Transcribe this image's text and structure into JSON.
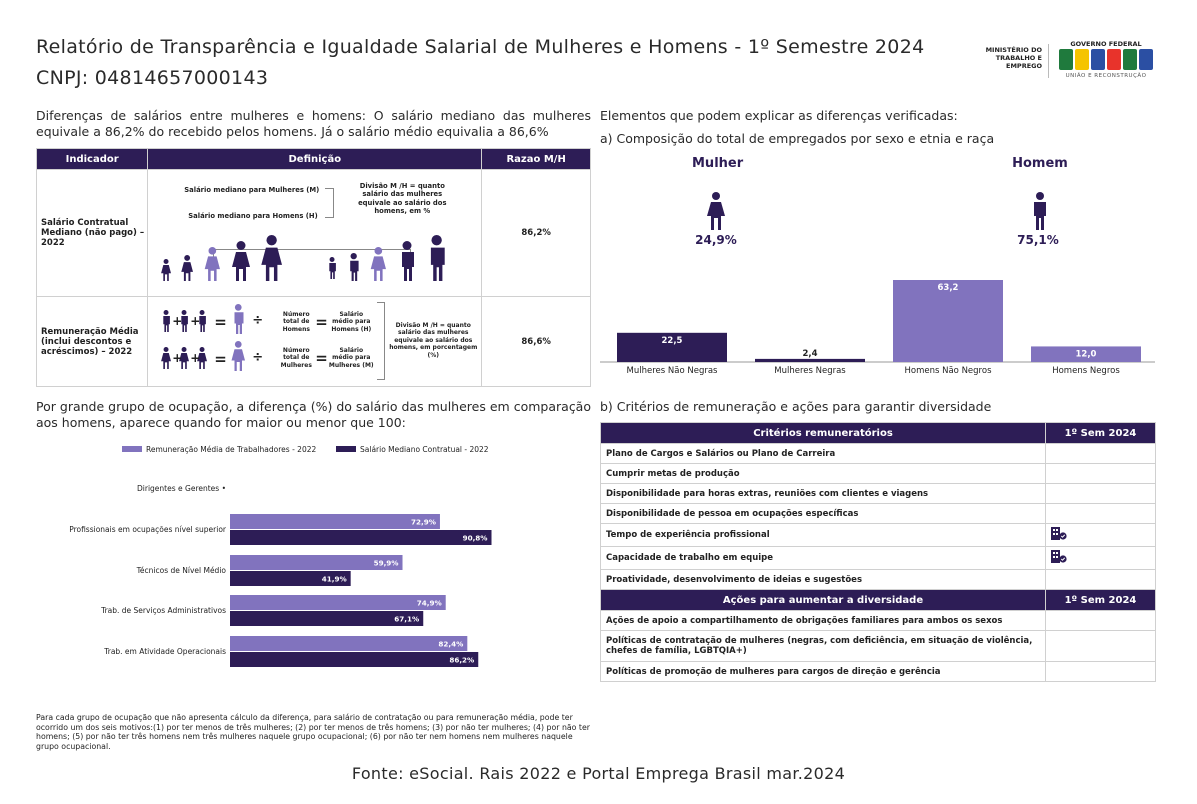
{
  "header": {
    "title": "Relatório de Transparência e Igualdade Salarial de Mulheres e Homens - 1º Semestre 2024",
    "cnpj": "CNPJ: 04814657000143"
  },
  "logo": {
    "ministry": "MINISTÉRIO DO TRABALHO E EMPREGO",
    "gov": "GOVERNO FEDERAL",
    "brand": "BRASIL",
    "slogan": "UNIÃO E RECONSTRUÇÃO",
    "colors": [
      "#1f7a3d",
      "#f5c400",
      "#2b4fa3",
      "#e8332b",
      "#1f7a3d",
      "#2b4fa3"
    ]
  },
  "left_intro": {
    "line1": "Diferenças de salários entre mulheres e homens: O salário mediano das mulheres",
    "line2": "equivale a 86,2% do recebido pelos homens. Já o salário médio equivalia a 86,6%"
  },
  "indicator_table": {
    "headers": [
      "Indicador",
      "Definição",
      "Razao M/H"
    ],
    "row1": {
      "indicator": "Salário Contratual Mediano (não pago) – 2022",
      "def_women": "Salário mediano para Mulheres (M)",
      "def_men": "Salário mediano para Homens (H)",
      "division": "Divisão M /H = quanto salário das mulheres equivale ao salário dos homens, em %",
      "ratio": "86,2%"
    },
    "row2": {
      "indicator": "Remuneração Média (inclui descontos e acréscimos) – 2022",
      "num_total_men": "Número total de Homens",
      "num_total_women": "Número total de Mulheres",
      "avg_men": "Salário médio para Homens (H)",
      "avg_women": "Salário médio para Mulheres (M)",
      "division": "Divisão M /H = quanto salário das mulheres equivale ao salário dos homens, em porcentagem (%)",
      "ratio": "86,6%"
    }
  },
  "right_intro": {
    "heading": "Elementos que podem explicar as diferenças verificadas:",
    "sub_a": "a) Composição do total de empregados por sexo e etnia e raça",
    "sub_b": "b) Critérios de remuneração e ações para garantir diversidade"
  },
  "composition": {
    "women_label": "Mulher",
    "women_pct": "24,9%",
    "men_label": "Homem",
    "men_pct": "75,1%"
  },
  "occupation_intro": {
    "line1": "Por grande grupo de ocupação, a diferença (%) do salário das mulheres em comparação",
    "line2": "aos homens, aparece quando for maior ou menor que 100:"
  },
  "chart_data": [
    {
      "type": "bar",
      "categories": [
        "Mulheres Não Negras",
        "Mulheres Negras",
        "Homens Não Negros",
        "Homens Negros"
      ],
      "values": [
        22.5,
        2.4,
        63.2,
        12.0
      ],
      "labels": [
        "22,5",
        "2,4",
        "63,2",
        "12,0"
      ],
      "colors": [
        "#2d1d56",
        "#2d1d56",
        "#8173be",
        "#8173be"
      ],
      "ylim": [
        0,
        63.2
      ]
    },
    {
      "type": "bar",
      "orientation": "horizontal",
      "categories": [
        "Dirigentes e Gerentes",
        "Profissionais em ocupações nível superior",
        "Técnicos de Nível Médio",
        "Trab. de Serviços Administrativos",
        "Trab. em Atividade Operacionais"
      ],
      "series": [
        {
          "name": "Remuneração Média de Trabalhadores - 2022",
          "color": "#8173be",
          "values": [
            null,
            72.9,
            59.9,
            74.9,
            82.4
          ],
          "labels": [
            "",
            "72,9%",
            "59,9%",
            "74,9%",
            "82,4%"
          ]
        },
        {
          "name": "Salário Mediano Contratual - 2022",
          "color": "#2d1d56",
          "values": [
            null,
            90.8,
            41.9,
            67.1,
            86.2
          ],
          "labels": [
            "",
            "90,8%",
            "41,9%",
            "67,1%",
            "86,2%"
          ]
        }
      ],
      "xlim": [
        0,
        100
      ],
      "legend": "top"
    }
  ],
  "criteria_table": {
    "header1": "Critérios remuneratórios",
    "header2": "1º Sem 2024",
    "rows": [
      {
        "label": "Plano de Cargos e Salários ou Plano de Carreira",
        "mark": false
      },
      {
        "label": "Cumprir metas de produção",
        "mark": false
      },
      {
        "label": "Disponibilidade para horas extras, reuniões com clientes e viagens",
        "mark": false
      },
      {
        "label": "Disponibilidade de pessoa em ocupações específicas",
        "mark": false
      },
      {
        "label": "Tempo de experiência profissional",
        "mark": true
      },
      {
        "label": "Capacidade de trabalho em equipe",
        "mark": true
      },
      {
        "label": "Proatividade, desenvolvimento de ideias e sugestões",
        "mark": false
      }
    ],
    "actions_header1": "Ações para aumentar a diversidade",
    "actions_header2": "1º Sem 2024",
    "actions": [
      {
        "label": "Ações de apoio a compartilhamento de obrigações familiares para ambos os sexos"
      },
      {
        "label": "Políticas de contratação de mulheres (negras, com deficiência, em situação de violência, chefes de família, LGBTQIA+)"
      },
      {
        "label": "Políticas de promoção de mulheres para cargos de direção e gerência"
      }
    ],
    "mark_icon": "building-check-icon"
  },
  "footnote": "Para cada grupo de ocupação que não apresenta cálculo da diferença, para salário de contratação ou para remuneração média, pode ter ocorrido um dos seis motivos:(1) por ter menos de três mulheres; (2) por ter menos de três homens; (3) por não ter mulheres; (4) por não ter homens; (5) por não ter três homens nem três mulheres naquele grupo ocupacional; (6) por não ter nem homens nem mulheres naquele grupo ocupacional.",
  "fonte": "Fonte: eSocial. Rais 2022 e Portal Emprega Brasil mar.2024"
}
